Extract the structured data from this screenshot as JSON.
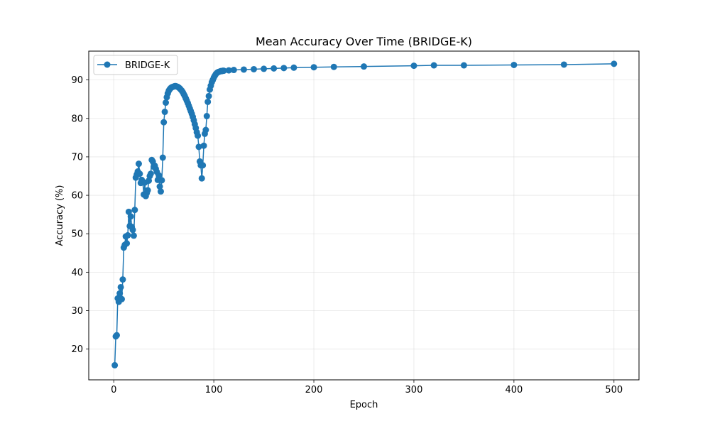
{
  "chart_data": {
    "type": "line",
    "title": "Mean Accuracy Over Time (BRIDGE-K)",
    "xlabel": "Epoch",
    "ylabel": "Accuracy (%)",
    "xlim": [
      -25,
      525
    ],
    "ylim": [
      12,
      97.5
    ],
    "xticks": [
      0,
      100,
      200,
      300,
      400,
      500
    ],
    "yticks": [
      20,
      30,
      40,
      50,
      60,
      70,
      80,
      90
    ],
    "grid": true,
    "legend_position": "upper-left",
    "series": [
      {
        "name": "BRIDGE-K",
        "color": "#1f77b4",
        "marker": "circle",
        "x": [
          1,
          2,
          3,
          4,
          5,
          6,
          7,
          8,
          9,
          10,
          11,
          12,
          13,
          14,
          15,
          16,
          17,
          18,
          19,
          20,
          21,
          22,
          23,
          24,
          25,
          26,
          27,
          28,
          29,
          30,
          31,
          32,
          33,
          34,
          35,
          36,
          37,
          38,
          39,
          40,
          41,
          42,
          43,
          44,
          45,
          46,
          47,
          48,
          49,
          50,
          51,
          52,
          53,
          54,
          55,
          56,
          57,
          58,
          59,
          60,
          61,
          62,
          63,
          64,
          65,
          66,
          67,
          68,
          69,
          70,
          71,
          72,
          73,
          74,
          75,
          76,
          77,
          78,
          79,
          80,
          81,
          82,
          83,
          84,
          85,
          86,
          87,
          88,
          89,
          90,
          91,
          92,
          93,
          94,
          95,
          96,
          97,
          98,
          99,
          100,
          101,
          102,
          103,
          104,
          105,
          106,
          107,
          108,
          109,
          110,
          115,
          120,
          130,
          140,
          150,
          160,
          170,
          180,
          200,
          220,
          250,
          300,
          320,
          350,
          400,
          450,
          500
        ],
        "y": [
          15.8,
          23.3,
          23.6,
          33.2,
          32.3,
          34.5,
          36.1,
          33.0,
          38.1,
          46.4,
          47.1,
          49.3,
          47.5,
          49.6,
          55.7,
          52.0,
          54.5,
          51.8,
          51.0,
          49.5,
          56.2,
          64.6,
          65.4,
          66.2,
          68.2,
          65.6,
          63.2,
          64.0,
          63.5,
          60.2,
          63.3,
          59.8,
          60.6,
          61.3,
          63.8,
          65.0,
          65.6,
          69.2,
          68.8,
          67.4,
          67.7,
          66.9,
          66.1,
          64.0,
          65.2,
          62.3,
          61.0,
          63.9,
          69.8,
          79.0,
          81.7,
          84.1,
          85.5,
          86.5,
          87.2,
          87.6,
          87.9,
          88.1,
          88.2,
          88.3,
          88.4,
          88.4,
          88.3,
          88.2,
          88.0,
          87.8,
          87.5,
          87.2,
          86.8,
          86.3,
          85.8,
          85.2,
          84.6,
          84.0,
          83.3,
          82.6,
          81.9,
          81.2,
          80.4,
          79.5,
          78.5,
          77.5,
          76.4,
          75.5,
          72.6,
          68.8,
          67.8,
          64.4,
          67.8,
          72.9,
          76.0,
          77.0,
          80.6,
          84.3,
          85.8,
          87.5,
          88.5,
          89.4,
          90.0,
          90.6,
          91.1,
          91.5,
          91.8,
          92.0,
          92.1,
          92.2,
          92.3,
          92.3,
          92.4,
          92.4,
          92.5,
          92.6,
          92.7,
          92.8,
          92.9,
          93.0,
          93.1,
          93.2,
          93.3,
          93.4,
          93.5,
          93.7,
          93.8,
          93.8,
          93.9,
          94.0,
          94.2
        ]
      }
    ]
  }
}
